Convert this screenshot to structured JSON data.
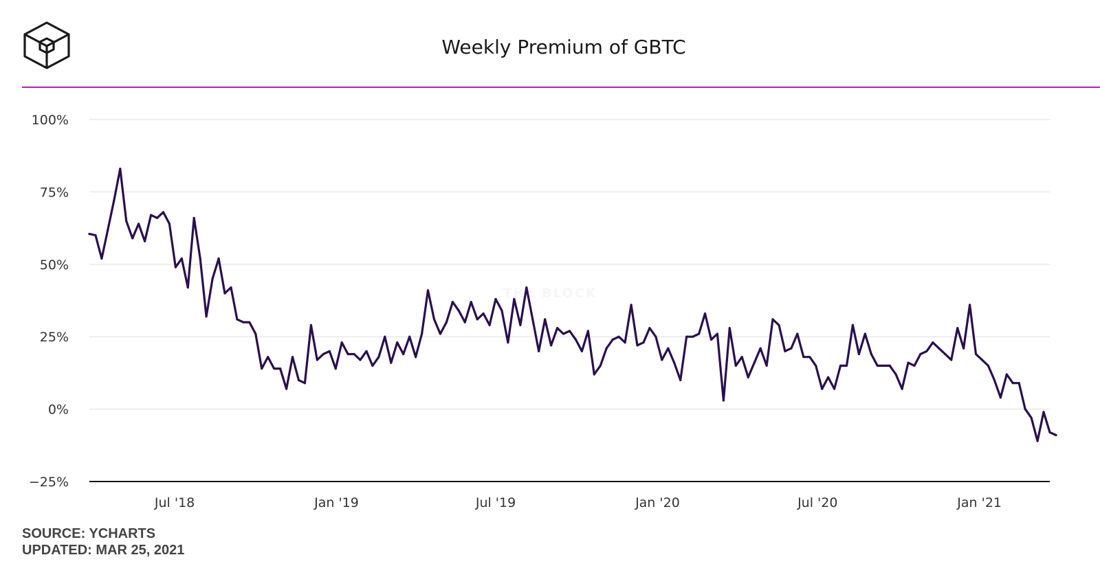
{
  "header": {
    "title": "Weekly Premium of GBTC"
  },
  "colors": {
    "accent": "#b01fb8",
    "line": "#2a0f4f",
    "grid": "#e8e8e8",
    "axis": "#111111"
  },
  "logo": {
    "icon": "the-block-cube-icon"
  },
  "watermark": "THE BLOCK",
  "footer": {
    "source": "SOURCE: YCHARTS",
    "updated": "UPDATED: MAR 25, 2021"
  },
  "chart_data": {
    "type": "line",
    "title": "Weekly Premium of GBTC",
    "xlabel": "",
    "ylabel": "",
    "x_domain": [
      "2018-03-26",
      "2021-03-22"
    ],
    "ylim": [
      -25,
      100
    ],
    "yticks": [
      100,
      75,
      50,
      25,
      0,
      -25
    ],
    "ytick_labels": [
      "100%",
      "75%",
      "50%",
      "25%",
      "0%",
      "−25%"
    ],
    "xticks": [
      {
        "date": "2018-07-01",
        "label": "Jul '18"
      },
      {
        "date": "2019-01-01",
        "label": "Jan '19"
      },
      {
        "date": "2019-07-01",
        "label": "Jul '19"
      },
      {
        "date": "2020-01-01",
        "label": "Jan '20"
      },
      {
        "date": "2020-07-01",
        "label": "Jul '20"
      },
      {
        "date": "2021-01-01",
        "label": "Jan '21"
      }
    ],
    "grid": true,
    "series": [
      {
        "x_start": "2018-03-26",
        "x_step_days": 7,
        "values": [
          60.5,
          60,
          52,
          62,
          72,
          83,
          65,
          59,
          64,
          58,
          67,
          66,
          68,
          64,
          49,
          52,
          42,
          66,
          52,
          32,
          45,
          52,
          40,
          42,
          31,
          30,
          30,
          26,
          14,
          18,
          14,
          14,
          7,
          18,
          10,
          9,
          29,
          17,
          19,
          20,
          14,
          23,
          19,
          19,
          17,
          20,
          15,
          18,
          25,
          16,
          23,
          19,
          25,
          18,
          26,
          41,
          31,
          26,
          30,
          37,
          34,
          30,
          37,
          31,
          33,
          29,
          38,
          34,
          23,
          38,
          29,
          42,
          31,
          20,
          31,
          22,
          28,
          26,
          27,
          24,
          20,
          27,
          12,
          15,
          21,
          24,
          25,
          23,
          36,
          22,
          23,
          28,
          25,
          17,
          21,
          16,
          10,
          25,
          25,
          26,
          33,
          24,
          26,
          3,
          28,
          15,
          18,
          11,
          16,
          21,
          15,
          31,
          29,
          20,
          21,
          26,
          18,
          18,
          15,
          7,
          11,
          7,
          15,
          15,
          29,
          19,
          26,
          19,
          15,
          15,
          15,
          12,
          7,
          16,
          15,
          19,
          20,
          23,
          21,
          19,
          17,
          28,
          21,
          36,
          19,
          17,
          15,
          10,
          4,
          12,
          9,
          9,
          0,
          -3,
          -11,
          -1,
          -8,
          -9
        ]
      }
    ]
  }
}
